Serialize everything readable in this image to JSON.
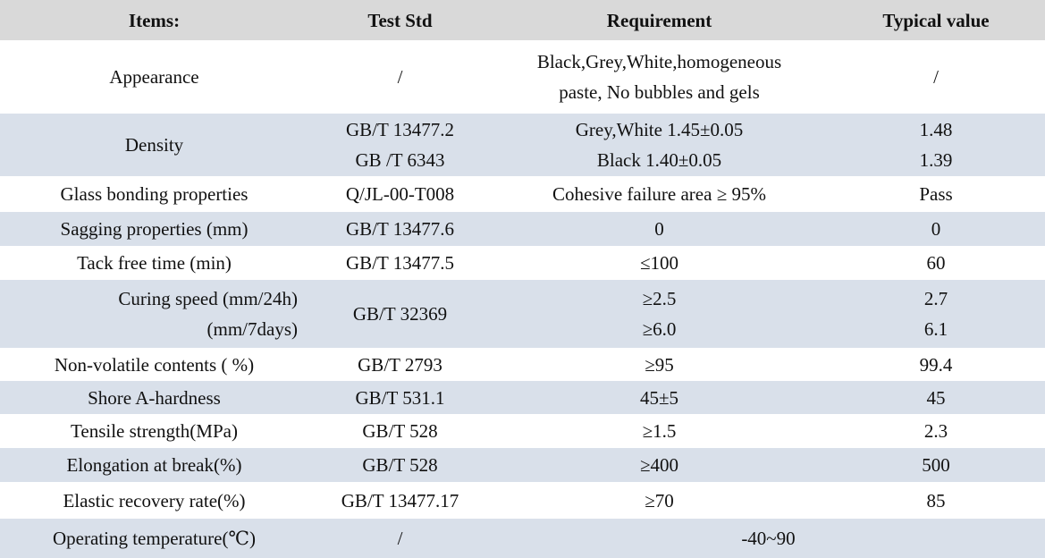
{
  "colors": {
    "header_bg": "#d9d9d9",
    "alt_row_bg": "#d9e0ea",
    "text": "#111111"
  },
  "table": {
    "columns": [
      {
        "key": "item",
        "label": "Items:"
      },
      {
        "key": "std",
        "label": "Test Std"
      },
      {
        "key": "req",
        "label": "Requirement"
      },
      {
        "key": "typ",
        "label": "Typical value"
      }
    ],
    "rows": [
      {
        "name": "appearance",
        "item": [
          "Appearance"
        ],
        "std": [
          "/"
        ],
        "req": [
          "Black,Grey,White,homogeneous",
          "paste, No bubbles and gels"
        ],
        "typ": [
          "/"
        ]
      },
      {
        "name": "density",
        "item": [
          "Density"
        ],
        "std": [
          "GB/T 13477.2",
          "GB /T 6343"
        ],
        "req": [
          "Grey,White 1.45±0.05",
          "Black 1.40±0.05"
        ],
        "typ": [
          "1.48",
          "1.39"
        ]
      },
      {
        "name": "glass-bonding",
        "item": [
          "Glass bonding properties"
        ],
        "std": [
          "Q/JL-00-T008"
        ],
        "req": [
          "Cohesive failure area ≥ 95%"
        ],
        "typ": [
          "Pass"
        ]
      },
      {
        "name": "sagging",
        "item": [
          "Sagging properties (mm)"
        ],
        "std": [
          "GB/T 13477.6"
        ],
        "req": [
          "0"
        ],
        "typ": [
          "0"
        ]
      },
      {
        "name": "tack-free-time",
        "item": [
          "Tack free time (min)"
        ],
        "std": [
          "GB/T 13477.5"
        ],
        "req": [
          "≤100"
        ],
        "typ": [
          "60"
        ]
      },
      {
        "name": "curing-speed",
        "item": [
          "Curing speed (mm/24h)",
          "(mm/7days)"
        ],
        "std": [
          "GB/T 32369"
        ],
        "req": [
          "≥2.5",
          "≥6.0"
        ],
        "typ": [
          "2.7",
          "6.1"
        ]
      },
      {
        "name": "non-volatile",
        "item": [
          "Non-volatile contents ( %)"
        ],
        "std": [
          "GB/T 2793"
        ],
        "req": [
          "≥95"
        ],
        "typ": [
          "99.4"
        ]
      },
      {
        "name": "shore-hardness",
        "item": [
          "Shore A-hardness"
        ],
        "std": [
          "GB/T 531.1"
        ],
        "req": [
          "45±5"
        ],
        "typ": [
          "45"
        ]
      },
      {
        "name": "tensile-strength",
        "item": [
          "Tensile strength(MPa)"
        ],
        "std": [
          "GB/T 528"
        ],
        "req": [
          "≥1.5"
        ],
        "typ": [
          "2.3"
        ]
      },
      {
        "name": "elongation",
        "item": [
          "Elongation at break(%)"
        ],
        "std": [
          "GB/T 528"
        ],
        "req": [
          "≥400"
        ],
        "typ": [
          "500"
        ]
      },
      {
        "name": "elastic-recovery",
        "item": [
          "Elastic recovery rate(%)"
        ],
        "std": [
          "GB/T 13477.17"
        ],
        "req": [
          "≥70"
        ],
        "typ": [
          "85"
        ]
      },
      {
        "name": "operating-temperature",
        "item": [
          "Operating temperature(℃)"
        ],
        "std": [
          "/"
        ],
        "req_typ_merged": [
          "-40~90"
        ]
      }
    ]
  }
}
